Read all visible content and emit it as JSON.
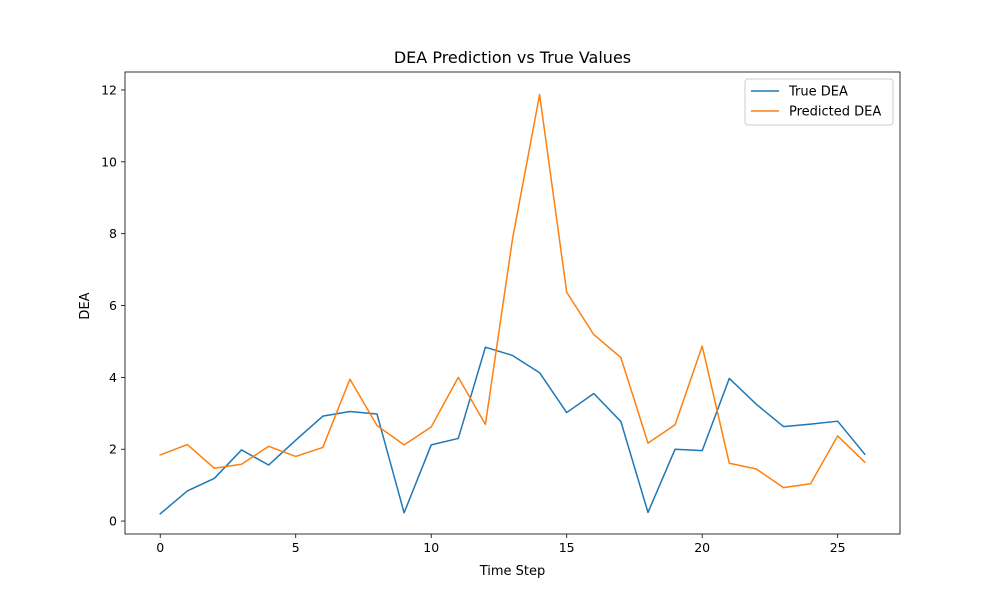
{
  "chart_data": {
    "type": "line",
    "title": "DEA Prediction vs True Values",
    "xlabel": "Time Step",
    "ylabel": "DEA",
    "xlim": [
      -1.3,
      27.3
    ],
    "ylim": [
      -0.36,
      12.5
    ],
    "xticks": [
      0,
      5,
      10,
      15,
      20,
      25
    ],
    "yticks": [
      0,
      2,
      4,
      6,
      8,
      10,
      12
    ],
    "grid": false,
    "legend_position": "top-right",
    "x": [
      0,
      1,
      2,
      3,
      4,
      5,
      6,
      7,
      8,
      9,
      10,
      11,
      12,
      13,
      14,
      15,
      16,
      17,
      18,
      19,
      20,
      21,
      22,
      23,
      24,
      25,
      26
    ],
    "series": [
      {
        "name": "True DEA",
        "color": "#1f77b4",
        "values": [
          0.2,
          0.84,
          1.19,
          1.98,
          1.56,
          2.25,
          2.92,
          3.05,
          2.98,
          0.23,
          2.12,
          2.3,
          4.84,
          4.61,
          4.13,
          3.02,
          3.55,
          2.77,
          0.24,
          2.0,
          1.96,
          3.97,
          3.25,
          2.63,
          2.7,
          2.78,
          1.86
        ]
      },
      {
        "name": "Predicted DEA",
        "color": "#ff7f0e",
        "values": [
          1.84,
          2.13,
          1.47,
          1.58,
          2.08,
          1.8,
          2.05,
          3.95,
          2.66,
          2.12,
          2.62,
          4.0,
          2.69,
          7.85,
          11.87,
          6.37,
          5.19,
          4.55,
          2.17,
          2.68,
          4.87,
          1.61,
          1.45,
          0.93,
          1.04,
          2.37,
          1.64
        ]
      }
    ]
  }
}
